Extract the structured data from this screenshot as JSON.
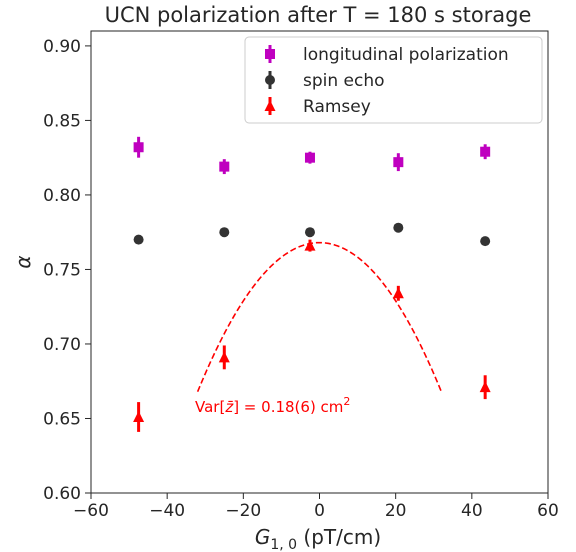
{
  "chart_data": {
    "type": "scatter",
    "title": "UCN polarization after T = 180 s storage",
    "xlabel_main": "G",
    "xlabel_sub": "1, 0",
    "xlabel_unit": " (pT/cm)",
    "ylabel": "α",
    "xlim": [
      -60,
      60
    ],
    "ylim": [
      0.6,
      0.91
    ],
    "xticks": [
      "−60",
      "−40",
      "−20",
      "0",
      "20",
      "40",
      "60"
    ],
    "xtick_values": [
      -60,
      -40,
      -20,
      0,
      20,
      40,
      60
    ],
    "yticks": [
      "0.60",
      "0.65",
      "0.70",
      "0.75",
      "0.80",
      "0.85",
      "0.90"
    ],
    "ytick_values": [
      0.6,
      0.65,
      0.7,
      0.75,
      0.8,
      0.85,
      0.9
    ],
    "grid": false,
    "legend_position": "top-right",
    "series": [
      {
        "name": "longitudinal polarization",
        "marker": "square",
        "color": "#bf00bf",
        "points": [
          {
            "x": -47.5,
            "y": 0.832,
            "err": 0.007
          },
          {
            "x": -25.0,
            "y": 0.819,
            "err": 0.005
          },
          {
            "x": -2.5,
            "y": 0.825,
            "err": 0.004
          },
          {
            "x": 20.7,
            "y": 0.822,
            "err": 0.006
          },
          {
            "x": 43.5,
            "y": 0.829,
            "err": 0.005
          }
        ]
      },
      {
        "name": "spin echo",
        "marker": "circle",
        "color": "#333333",
        "points": [
          {
            "x": -47.5,
            "y": 0.77,
            "err": 0.001
          },
          {
            "x": -25.0,
            "y": 0.775,
            "err": 0.001
          },
          {
            "x": -2.5,
            "y": 0.775,
            "err": 0.001
          },
          {
            "x": 20.7,
            "y": 0.778,
            "err": 0.001
          },
          {
            "x": 43.5,
            "y": 0.769,
            "err": 0.001
          }
        ]
      },
      {
        "name": "Ramsey",
        "marker": "triangle",
        "color": "#ff0000",
        "points": [
          {
            "x": -47.5,
            "y": 0.651,
            "err": 0.01
          },
          {
            "x": -25.0,
            "y": 0.691,
            "err": 0.008
          },
          {
            "x": -2.5,
            "y": 0.766,
            "err": 0.004
          },
          {
            "x": 20.7,
            "y": 0.734,
            "err": 0.005
          },
          {
            "x": 43.5,
            "y": 0.671,
            "err": 0.008
          }
        ]
      }
    ],
    "fit_curve": {
      "color": "#ff0000",
      "style": "dashed",
      "x_range": [
        -32,
        32
      ],
      "vertex_x": 0,
      "vertex_y": 0.768,
      "curvature": 9.77e-05
    },
    "annotation": {
      "text_prefix": "Var[",
      "text_var": "z̄",
      "text_mid": "] = 0.18(6) cm",
      "text_sup": "2",
      "color": "#ff0000"
    }
  }
}
